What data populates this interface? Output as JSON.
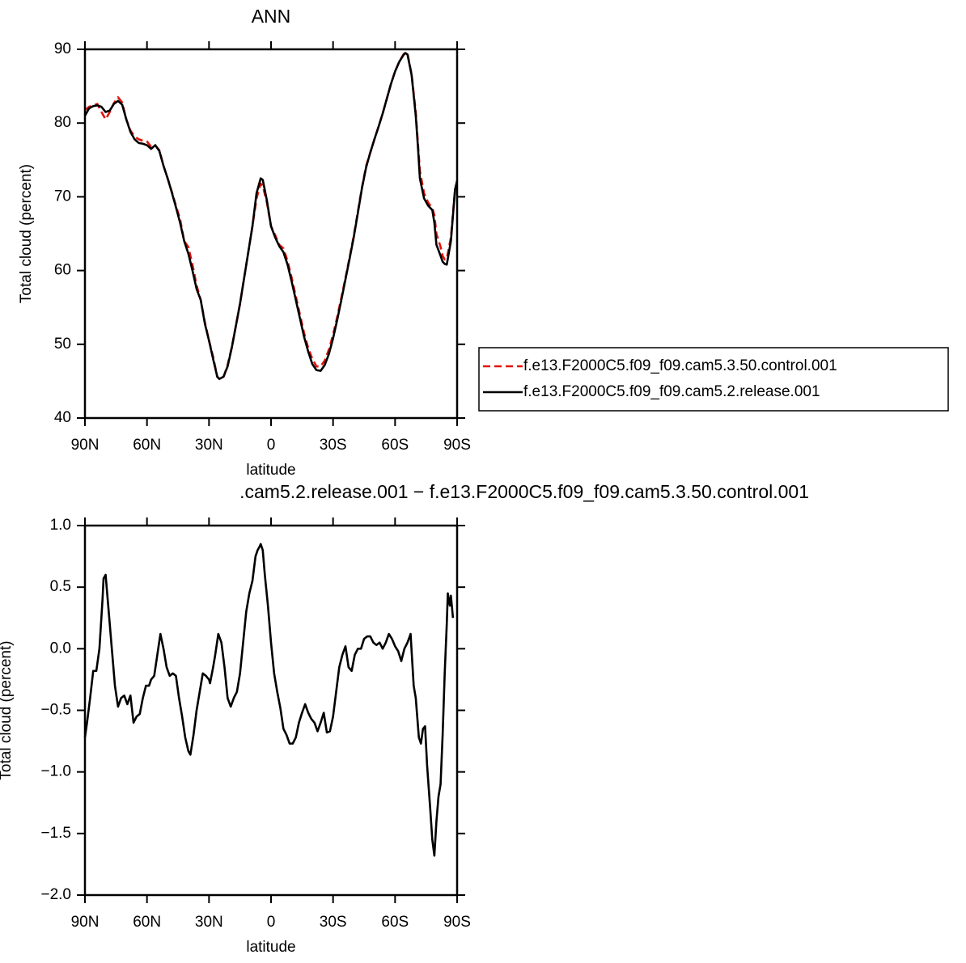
{
  "chart_data": [
    {
      "type": "line",
      "title": "ANN",
      "x_label": "latitude",
      "y_label": "Total cloud (percent)",
      "xlim": [
        90,
        -90
      ],
      "xticks": [
        {
          "value": 90,
          "label": "90N"
        },
        {
          "value": 60,
          "label": "60N"
        },
        {
          "value": 30,
          "label": "30N"
        },
        0,
        {
          "value": -30,
          "label": "30S"
        },
        {
          "value": -60,
          "label": "60S"
        },
        {
          "value": -90,
          "label": "90S"
        }
      ],
      "ylim": [
        40,
        90
      ],
      "yticks": [
        40,
        50,
        60,
        70,
        80,
        90
      ],
      "legend": "right",
      "x": [
        90,
        88,
        86,
        84,
        82,
        80,
        78,
        76,
        74,
        72,
        70,
        68,
        66,
        64,
        62,
        60,
        58,
        56,
        54,
        52,
        50,
        48,
        46,
        44,
        42,
        40,
        38,
        36,
        34,
        32,
        30,
        28,
        26,
        25,
        23,
        21,
        19,
        17,
        15,
        13,
        11,
        9,
        7,
        5,
        4,
        2,
        0,
        -2,
        -4,
        -6,
        -8,
        -10,
        -12,
        -14,
        -16,
        -18,
        -20,
        -22,
        -24,
        -26,
        -28,
        -30,
        -32,
        -34,
        -36,
        -38,
        -40,
        -42,
        -44,
        -46,
        -48,
        -50,
        -52,
        -54,
        -56,
        -58,
        -60,
        -62,
        -64,
        -65,
        -66,
        -68,
        -70,
        -71,
        -72,
        -74,
        -76,
        -78,
        -79,
        -80,
        -82,
        -83,
        -84,
        -85,
        -87,
        -89,
        -90
      ],
      "series": [
        {
          "name": "f.e13.F2000C5.f09_f09.cam5.3.50.control.001",
          "color": "#e3120b",
          "linestyle": "dashed",
          "values": [
            81.8,
            82.2,
            82.4,
            82.6,
            81.5,
            80.5,
            81.5,
            82.7,
            83.5,
            82.8,
            80.5,
            79,
            78.2,
            77.8,
            77.6,
            77.5,
            76.8,
            77,
            76.3,
            74.2,
            72.5,
            70.7,
            68.8,
            67,
            64,
            63.2,
            60.8,
            58,
            56,
            53,
            50.5,
            48.3,
            45.6,
            45.3,
            45.5,
            47.2,
            49.6,
            52.5,
            55.5,
            59,
            62.5,
            66,
            69.8,
            71.8,
            71.5,
            69.2,
            66,
            64.8,
            63.5,
            63,
            61.3,
            59,
            56.5,
            54,
            51.5,
            49.5,
            48,
            47,
            47,
            47.8,
            49.3,
            51.3,
            53.7,
            56.3,
            59,
            61.8,
            64.7,
            68,
            71.3,
            74.2,
            76,
            77.8,
            79.5,
            81.3,
            83.3,
            85.3,
            87,
            88.3,
            89.3,
            89.6,
            89.4,
            86.6,
            81.5,
            77.5,
            73.5,
            70.5,
            69.2,
            68.5,
            67.5,
            65,
            63.2,
            62,
            61.5,
            61.6,
            64.5,
            71,
            71.5
          ]
        },
        {
          "name": "f.e13.F2000C5.f09_f09.cam5.2.release.001",
          "color": "#000000",
          "linestyle": "solid",
          "values": [
            81,
            82,
            82.3,
            82.4,
            82.2,
            81.5,
            81.7,
            82.6,
            83,
            82.5,
            80.5,
            78.8,
            77.8,
            77.3,
            77.2,
            77,
            76.5,
            77,
            76.2,
            74.2,
            72.5,
            70.6,
            68.6,
            66.5,
            64,
            62.3,
            60,
            57.5,
            56,
            52.8,
            50.5,
            48,
            45.6,
            45.3,
            45.6,
            47,
            49.5,
            52.5,
            55.5,
            59,
            62.5,
            66,
            70.5,
            72.5,
            72.3,
            69.5,
            66,
            64.5,
            63.3,
            62.5,
            60.8,
            58.5,
            56,
            53.5,
            51,
            49,
            47.3,
            46.5,
            46.4,
            47.2,
            48.7,
            50.8,
            53.3,
            56,
            58.8,
            61.6,
            64.5,
            67.8,
            71.2,
            74,
            76,
            77.8,
            79.5,
            81.3,
            83.3,
            85.3,
            87,
            88.3,
            89.2,
            89.5,
            89.3,
            86.5,
            81,
            77,
            72.5,
            69.8,
            68.8,
            68.2,
            66.5,
            63.5,
            62,
            61.2,
            60.9,
            60.8,
            64,
            71,
            72.2
          ]
        }
      ]
    },
    {
      "type": "line",
      "title": ".cam5.2.release.001 − f.e13.F2000C5.f09_f09.cam5.3.50.control.001",
      "x_label": "latitude",
      "y_label": "Total cloud (percent)",
      "xlim": [
        90,
        -90
      ],
      "xticks": [
        {
          "value": 90,
          "label": "90N"
        },
        {
          "value": 60,
          "label": "60N"
        },
        {
          "value": 30,
          "label": "30N"
        },
        0,
        {
          "value": -30,
          "label": "30S"
        },
        {
          "value": -60,
          "label": "60S"
        },
        {
          "value": -90,
          "label": "90S"
        }
      ],
      "ylim": [
        -2,
        1
      ],
      "yticks": [
        {
          "value": -2,
          "label": "−2.0"
        },
        {
          "value": -1.5,
          "label": "−1.5"
        },
        {
          "value": -1,
          "label": "−1.0"
        },
        {
          "value": -0.5,
          "label": "−0.5"
        },
        {
          "value": 0,
          "label": "0.0"
        },
        0.5,
        {
          "value": 1,
          "label": "1.0"
        }
      ],
      "x": [
        90,
        89,
        87.5,
        86,
        84.5,
        83,
        81.5,
        81,
        80,
        79,
        78,
        77,
        75.5,
        74,
        72.5,
        71,
        69.5,
        68,
        66.5,
        65,
        63.5,
        62,
        60.5,
        59,
        58,
        56.5,
        55,
        53.5,
        52,
        50.5,
        49,
        47.5,
        46,
        44.5,
        43,
        41.5,
        40,
        39,
        37.5,
        36,
        34.5,
        33,
        31.5,
        30,
        29.5,
        28,
        27,
        25.5,
        24,
        22.5,
        21,
        19.5,
        18,
        16.5,
        15,
        13.5,
        12,
        10.5,
        9,
        7.5,
        6.5,
        5.5,
        5,
        4,
        3,
        1.5,
        0,
        -1.5,
        -3,
        -4.5,
        -6,
        -7.5,
        -9,
        -10.5,
        -12,
        -13.5,
        -15,
        -16.5,
        -18,
        -19.5,
        -21,
        -22.5,
        -24,
        -25.5,
        -27,
        -28.5,
        -30,
        -31.5,
        -33,
        -34.5,
        -36,
        -37.5,
        -39,
        -40.5,
        -42,
        -43.5,
        -45,
        -46.5,
        -48,
        -49.5,
        -51,
        -52.5,
        -54,
        -55.5,
        -57,
        -58.5,
        -60,
        -61.5,
        -63,
        -64.5,
        -66,
        -67.5,
        -69,
        -70,
        -71.5,
        -72.5,
        -73.5,
        -74.5,
        -75.5,
        -77,
        -78,
        -79,
        -80,
        -81,
        -82,
        -83,
        -84,
        -85,
        -85.5,
        -86.5,
        -87,
        -88
      ],
      "series": [
        {
          "color": "#000000",
          "linestyle": "solid",
          "values": [
            -0.72,
            -0.6,
            -0.4,
            -0.18,
            -0.18,
            0.0,
            0.4,
            0.57,
            0.6,
            0.4,
            0.2,
            0.0,
            -0.3,
            -0.47,
            -0.4,
            -0.38,
            -0.45,
            -0.38,
            -0.6,
            -0.55,
            -0.53,
            -0.4,
            -0.3,
            -0.3,
            -0.25,
            -0.22,
            -0.05,
            0.12,
            0.0,
            -0.15,
            -0.22,
            -0.2,
            -0.22,
            -0.4,
            -0.55,
            -0.72,
            -0.83,
            -0.86,
            -0.7,
            -0.5,
            -0.35,
            -0.2,
            -0.22,
            -0.25,
            -0.28,
            -0.15,
            -0.05,
            0.12,
            0.05,
            -0.15,
            -0.4,
            -0.47,
            -0.4,
            -0.35,
            -0.2,
            0.05,
            0.3,
            0.45,
            0.55,
            0.75,
            0.8,
            0.83,
            0.85,
            0.8,
            0.6,
            0.35,
            0.05,
            -0.2,
            -0.35,
            -0.48,
            -0.65,
            -0.7,
            -0.77,
            -0.77,
            -0.72,
            -0.6,
            -0.52,
            -0.45,
            -0.52,
            -0.57,
            -0.6,
            -0.67,
            -0.6,
            -0.52,
            -0.68,
            -0.67,
            -0.55,
            -0.35,
            -0.15,
            -0.05,
            0.02,
            -0.15,
            -0.18,
            -0.05,
            0.0,
            0.0,
            0.08,
            0.1,
            0.1,
            0.05,
            0.03,
            0.05,
            0.0,
            0.05,
            0.12,
            0.08,
            0.02,
            -0.02,
            -0.1,
            0.0,
            0.05,
            0.12,
            -0.3,
            -0.4,
            -0.72,
            -0.77,
            -0.65,
            -0.63,
            -0.95,
            -1.3,
            -1.55,
            -1.68,
            -1.4,
            -1.2,
            -1.1,
            -0.7,
            -0.2,
            0.2,
            0.45,
            0.35,
            0.43,
            0.25
          ]
        }
      ]
    }
  ]
}
